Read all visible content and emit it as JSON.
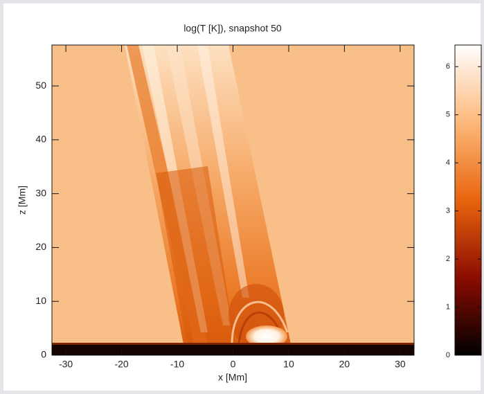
{
  "chart_data": {
    "type": "heatmap",
    "title": "log(T [K]), snapshot 50",
    "x_label": "x [Mm]",
    "y_label": "z [Mm]",
    "xlim": [
      -32.5,
      32.5
    ],
    "ylim": [
      0,
      57.6
    ],
    "xticks": [
      -30,
      -20,
      -10,
      0,
      10,
      20,
      30
    ],
    "yticks": [
      0,
      10,
      20,
      30,
      40,
      50
    ],
    "colorbar": {
      "lim": [
        0,
        6.45
      ],
      "ticks": [
        0,
        1,
        2,
        3,
        4,
        5,
        6
      ],
      "colors": [
        "#000000",
        "#8b0c00",
        "#e8650e",
        "#fdb87a",
        "#ffffff"
      ]
    }
  }
}
